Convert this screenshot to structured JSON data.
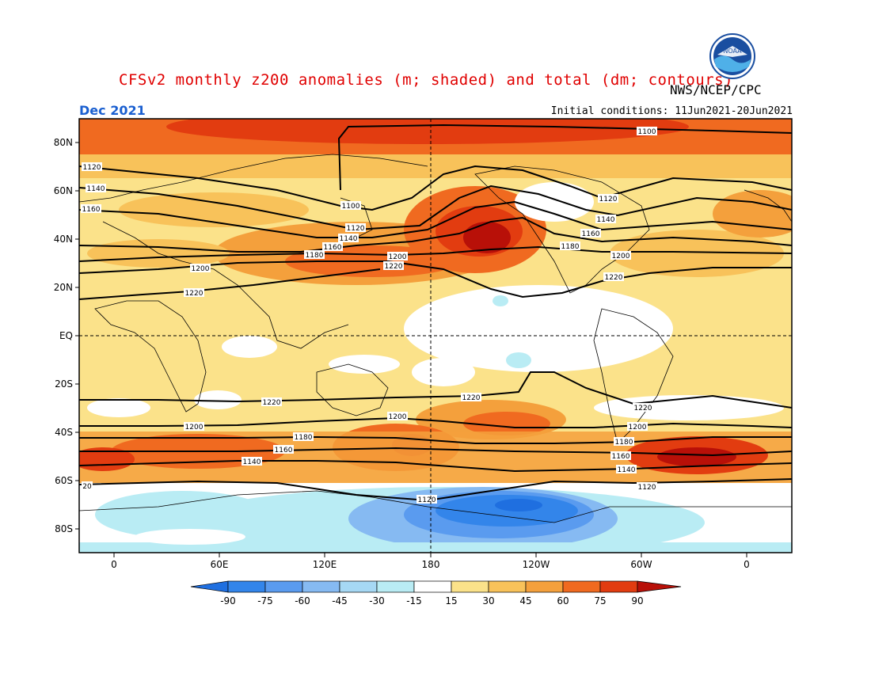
{
  "header": {
    "title": "CFSv2 monthly z200 anomalies (m; shaded) and total (dm; contours)",
    "org": "NWS/NCEP/CPC",
    "month": "Dec 2021",
    "init": "Initial conditions: 11Jun2021-20Jun2021",
    "logo_text": "NOAA"
  },
  "map": {
    "lat_labels": [
      "80N",
      "60N",
      "40N",
      "20N",
      "EQ",
      "20S",
      "40S",
      "60S",
      "80S"
    ],
    "lon_labels": [
      "0",
      "60E",
      "120E",
      "180",
      "120W",
      "60W",
      "0"
    ],
    "contour_labels": [
      "1100",
      "1120",
      "1140",
      "1160",
      "1180",
      "1200",
      "1220"
    ],
    "anomaly_colors": {
      "neg90": "#1f6fe0",
      "neg75": "#3385ea",
      "neg60": "#5a9bef",
      "neg45": "#86baf2",
      "neg30": "#b9ecf4",
      "neutral": "#ffffff",
      "pos15": "#fbe28a",
      "pos30": "#f8c25a",
      "pos45": "#f4a03c",
      "pos60": "#f06a20",
      "pos75": "#e23c10",
      "pos90": "#b81008"
    }
  },
  "colorbar": {
    "labels": [
      "-90",
      "-75",
      "-60",
      "-45",
      "-30",
      "-15",
      "15",
      "30",
      "45",
      "60",
      "75",
      "90"
    ]
  }
}
